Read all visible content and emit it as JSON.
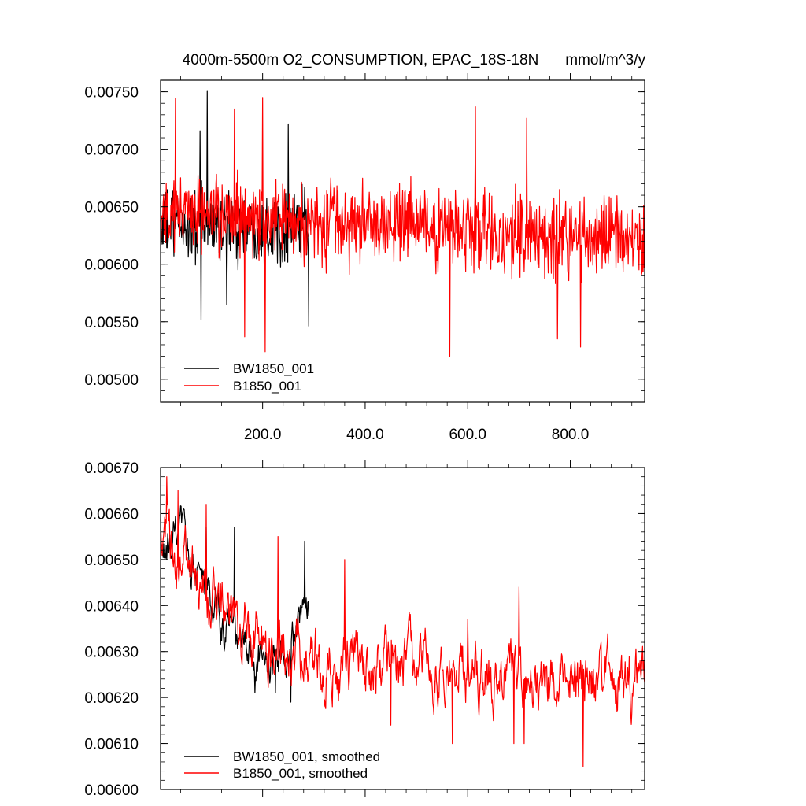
{
  "chart_data": [
    {
      "type": "line",
      "title": "4000m-5500m O2_CONSUMPTION, EPAC_18S-18N",
      "units": "mmol/m^3/y",
      "xlabel": "",
      "ylabel": "",
      "xlim": [
        1,
        945
      ],
      "ylim": [
        0.0048,
        0.0076
      ],
      "xticks": [
        200,
        400,
        600,
        800
      ],
      "xtick_labels": [
        "200.0",
        "400.0",
        "600.0",
        "800.0"
      ],
      "yticks": [
        0.005,
        0.0055,
        0.006,
        0.0065,
        0.007,
        0.0075
      ],
      "ytick_labels": [
        "0.00500",
        "0.00550",
        "0.00600",
        "0.00650",
        "0.00700",
        "0.00750"
      ],
      "grid": false,
      "legend_position": "bottom-left",
      "series": [
        {
          "name": "BW1850_001",
          "color": "#000000",
          "x_range": [
            1,
            290
          ],
          "mean": 0.00633,
          "noise_amplitude": 0.00034,
          "peaks": [
            [
              92,
              0.00751
            ],
            [
              250,
              0.00722
            ],
            [
              78,
              0.00716
            ]
          ],
          "troughs": [
            [
              80,
              0.00552
            ],
            [
              290,
              0.00546
            ],
            [
              130,
              0.00565
            ]
          ]
        },
        {
          "name": "B1850_001",
          "color": "#ff0000",
          "x_range": [
            1,
            945
          ],
          "mean_start": 0.00645,
          "mean_end": 0.0062,
          "noise_amplitude": 0.00038,
          "peaks": [
            [
              30,
              0.00744
            ],
            [
              200,
              0.00745
            ],
            [
              615,
              0.00737
            ],
            [
              145,
              0.00735
            ],
            [
              715,
              0.00727
            ]
          ],
          "troughs": [
            [
              205,
              0.00524
            ],
            [
              565,
              0.0052
            ],
            [
              820,
              0.00528
            ],
            [
              165,
              0.00537
            ],
            [
              775,
              0.00535
            ]
          ]
        }
      ]
    },
    {
      "type": "line",
      "title": "",
      "xlabel": "",
      "ylabel": "",
      "xlim": [
        1,
        945
      ],
      "ylim": [
        0.006,
        0.0067
      ],
      "xticks": [
        200,
        400,
        600,
        800
      ],
      "yticks": [
        0.006,
        0.0061,
        0.0062,
        0.0063,
        0.0064,
        0.0065,
        0.0066,
        0.0067
      ],
      "ytick_labels": [
        "0.00600",
        "0.00610",
        "0.00620",
        "0.00630",
        "0.00640",
        "0.00650",
        "0.00660",
        "0.00670"
      ],
      "grid": false,
      "legend_position": "bottom-left",
      "series": [
        {
          "name": "BW1850_001, smoothed",
          "color": "#000000",
          "x_range": [
            1,
            290
          ],
          "trend": [
            [
              1,
              0.0065
            ],
            [
              40,
              0.00655
            ],
            [
              80,
              0.00645
            ],
            [
              120,
              0.00635
            ],
            [
              160,
              0.00632
            ],
            [
              200,
              0.00628
            ],
            [
              240,
              0.00628
            ],
            [
              290,
              0.00638
            ]
          ],
          "noise_amplitude": 6e-05,
          "peaks": [
            [
              145,
              0.00657
            ],
            [
              90,
              0.00657
            ],
            [
              282,
              0.00654
            ]
          ],
          "troughs": [
            [
              255,
              0.00619
            ],
            [
              185,
              0.00621
            ],
            [
              225,
              0.00621
            ]
          ]
        },
        {
          "name": "B1850_001, smoothed",
          "color": "#ff0000",
          "x_range": [
            1,
            945
          ],
          "trend": [
            [
              1,
              0.00655
            ],
            [
              50,
              0.00648
            ],
            [
              100,
              0.0064
            ],
            [
              200,
              0.00632
            ],
            [
              300,
              0.00628
            ],
            [
              400,
              0.00628
            ],
            [
              500,
              0.00627
            ],
            [
              600,
              0.00626
            ],
            [
              700,
              0.00623
            ],
            [
              800,
              0.00624
            ],
            [
              945,
              0.00624
            ]
          ],
          "noise_amplitude": 8e-05,
          "peaks": [
            [
              13,
              0.00668
            ],
            [
              35,
              0.00665
            ],
            [
              90,
              0.00662
            ],
            [
              230,
              0.00655
            ],
            [
              360,
              0.0065
            ],
            [
              450,
              0.00649
            ],
            [
              700,
              0.00644
            ],
            [
              600,
              0.00637
            ]
          ],
          "troughs": [
            [
              570,
              0.0061
            ],
            [
              690,
              0.0061
            ],
            [
              710,
              0.0061
            ],
            [
              825,
              0.00605
            ],
            [
              950,
              0.00618
            ],
            [
              450,
              0.00614
            ],
            [
              320,
              0.00618
            ]
          ]
        }
      ]
    }
  ]
}
